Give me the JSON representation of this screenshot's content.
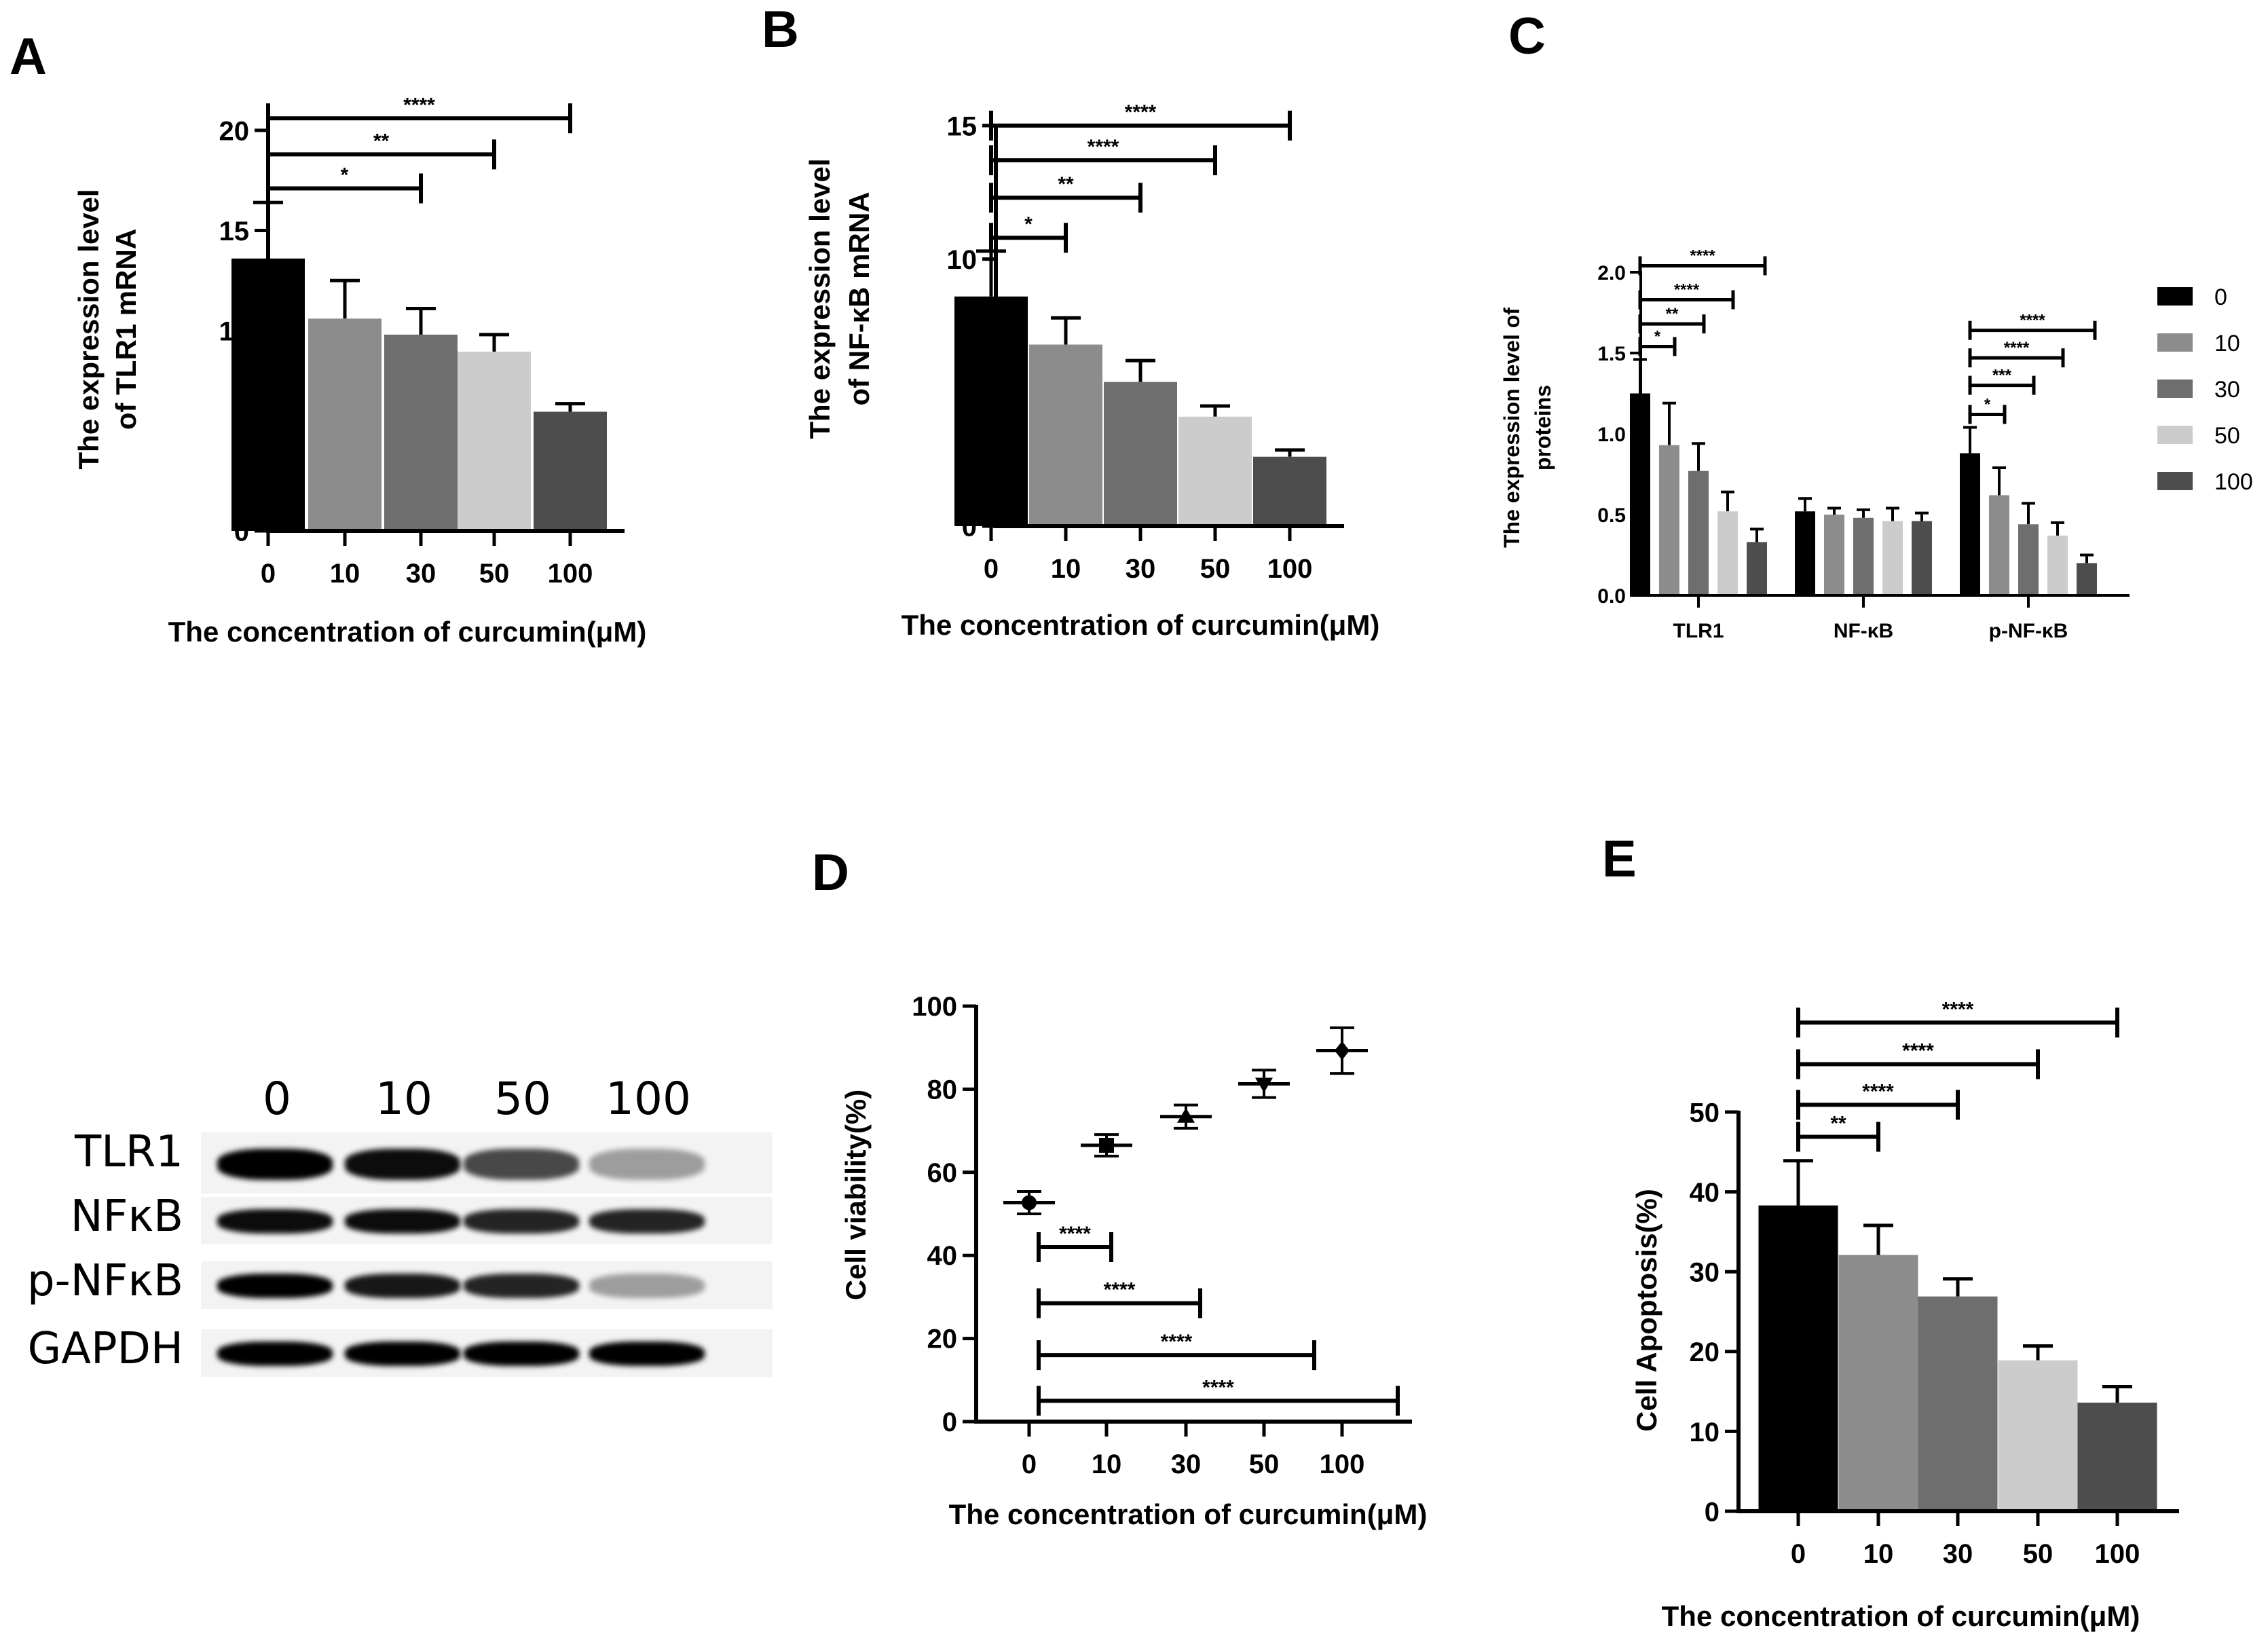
{
  "figure": {
    "panels": [
      "A",
      "B",
      "C",
      "D",
      "E"
    ]
  },
  "colors": {
    "c0": "#000000",
    "c10": "#8c8c8c",
    "c30": "#6e6e6e",
    "c50": "#cccccc",
    "c100": "#4d4d4d",
    "axis": "#000000"
  },
  "western_blot": {
    "lanes": [
      "0",
      "10",
      "50",
      "100"
    ],
    "rows": [
      {
        "label": "TLR1",
        "intensity": [
          1.0,
          0.95,
          0.7,
          0.35
        ]
      },
      {
        "label": "NFκB",
        "intensity": [
          0.95,
          0.95,
          0.85,
          0.85
        ]
      },
      {
        "label": "p-NFκB",
        "intensity": [
          1.0,
          0.9,
          0.85,
          0.35
        ]
      },
      {
        "label": "GAPDH",
        "intensity": [
          1.0,
          1.0,
          1.0,
          1.0
        ]
      }
    ]
  },
  "chart_data": [
    {
      "panel": "A",
      "type": "bar",
      "title": "",
      "xlabel": "The concentration of curcumin(μM)",
      "ylabel": "The expression level of TLR1 mRNA",
      "ylabel_lines": [
        "The expression level",
        "of TLR1 mRNA"
      ],
      "categories": [
        "0",
        "10",
        "30",
        "50",
        "100"
      ],
      "values": [
        13.6,
        10.6,
        9.8,
        8.95,
        5.95
      ],
      "error_upper": [
        16.4,
        12.5,
        11.1,
        9.8,
        6.35
      ],
      "ylim": [
        0,
        20
      ],
      "yticks": [
        0,
        5,
        10,
        15,
        20
      ],
      "significance": [
        {
          "from": "0",
          "to": "30",
          "label": "*",
          "y": 17.1
        },
        {
          "from": "0",
          "to": "50",
          "label": "**",
          "y": 18.8
        },
        {
          "from": "0",
          "to": "100",
          "label": "****",
          "y": 20.6
        }
      ],
      "grid": false
    },
    {
      "panel": "B",
      "type": "bar",
      "title": "",
      "xlabel": "The concentration of curcumin(μM)",
      "ylabel": "The expression level of NF-κB mRNA",
      "ylabel_lines": [
        "The expression level",
        "of NF-κB mRNA"
      ],
      "categories": [
        "0",
        "10",
        "30",
        "50",
        "100"
      ],
      "values": [
        8.6,
        6.8,
        5.4,
        4.1,
        2.6
      ],
      "error_upper": [
        10.3,
        7.8,
        6.2,
        4.5,
        2.85
      ],
      "ylim": [
        0,
        15
      ],
      "yticks": [
        0,
        5,
        10,
        15
      ],
      "significance": [
        {
          "from": "0",
          "to": "10",
          "label": "*",
          "y": 10.8
        },
        {
          "from": "0",
          "to": "30",
          "label": "**",
          "y": 12.3
        },
        {
          "from": "0",
          "to": "50",
          "label": "****",
          "y": 13.7
        },
        {
          "from": "0",
          "to": "100",
          "label": "****",
          "y": 15.0
        }
      ],
      "grid": false
    },
    {
      "panel": "C",
      "type": "bar",
      "title": "",
      "xlabel": "",
      "ylabel": "The expression level of proteins",
      "ylabel_lines": [
        "The expression level of",
        "proteins"
      ],
      "categories": [
        "TLR1",
        "NF-κB",
        "p-NF-κB"
      ],
      "series": [
        {
          "name": "0",
          "values": [
            1.25,
            0.52,
            0.88
          ],
          "error_upper": [
            1.46,
            0.6,
            1.04
          ]
        },
        {
          "name": "10",
          "values": [
            0.93,
            0.5,
            0.62
          ],
          "error_upper": [
            1.19,
            0.54,
            0.79
          ]
        },
        {
          "name": "30",
          "values": [
            0.77,
            0.48,
            0.44
          ],
          "error_upper": [
            0.94,
            0.53,
            0.57
          ]
        },
        {
          "name": "50",
          "values": [
            0.52,
            0.46,
            0.37
          ],
          "error_upper": [
            0.64,
            0.54,
            0.45
          ]
        },
        {
          "name": "100",
          "values": [
            0.33,
            0.46,
            0.2
          ],
          "error_upper": [
            0.41,
            0.51,
            0.25
          ]
        }
      ],
      "ylim": [
        0,
        2.0
      ],
      "yticks": [
        "0.0",
        "0.5",
        "1.0",
        "1.5",
        "2.0"
      ],
      "legend": {
        "position": "right",
        "entries": [
          "0",
          "10",
          "30",
          "50",
          "100"
        ]
      },
      "significance": [
        {
          "group": "TLR1",
          "from": "0",
          "to": "10",
          "label": "*",
          "y": 1.54
        },
        {
          "group": "TLR1",
          "from": "0",
          "to": "30",
          "label": "**",
          "y": 1.68
        },
        {
          "group": "TLR1",
          "from": "0",
          "to": "50",
          "label": "****",
          "y": 1.83
        },
        {
          "group": "TLR1",
          "from": "0",
          "to": "100",
          "label": "****",
          "y": 2.04
        },
        {
          "group": "p-NF-κB",
          "from": "0",
          "to": "10",
          "label": "*",
          "y": 1.12
        },
        {
          "group": "p-NF-κB",
          "from": "0",
          "to": "30",
          "label": "***",
          "y": 1.3
        },
        {
          "group": "p-NF-κB",
          "from": "0",
          "to": "50",
          "label": "****",
          "y": 1.47
        },
        {
          "group": "p-NF-κB",
          "from": "0",
          "to": "100",
          "label": "****",
          "y": 1.64
        }
      ],
      "grid": false
    },
    {
      "panel": "D",
      "type": "scatter",
      "title": "",
      "xlabel": "The concentration of curcumin(μM)",
      "ylabel": "Cell viability(%)",
      "categories": [
        "0",
        "10",
        "30",
        "50",
        "100"
      ],
      "values": [
        52.7,
        66.5,
        73.4,
        81.3,
        89.3
      ],
      "error": [
        2.7,
        2.6,
        2.8,
        3.3,
        5.5
      ],
      "markers": [
        "circle",
        "square",
        "triangle-up",
        "triangle-down",
        "diamond"
      ],
      "ylim": [
        0,
        100
      ],
      "yticks": [
        0,
        20,
        40,
        60,
        80,
        100
      ],
      "significance": [
        {
          "from": "0",
          "to": "10",
          "label": "****",
          "y": 42
        },
        {
          "from": "0",
          "to": "30",
          "label": "****",
          "y": 28.5
        },
        {
          "from": "0",
          "to": "50",
          "label": "****",
          "y": 16
        },
        {
          "from": "0",
          "to": "100",
          "label": "****",
          "y": 5
        }
      ],
      "grid": false
    },
    {
      "panel": "E",
      "type": "bar",
      "title": "",
      "xlabel": "The concentration of curcumin(μM)",
      "ylabel": "Cell Apoptosis(%)",
      "categories": [
        "0",
        "10",
        "30",
        "50",
        "100"
      ],
      "values": [
        38.3,
        32.1,
        26.9,
        18.9,
        13.6
      ],
      "error_upper": [
        43.9,
        35.8,
        29.1,
        20.7,
        15.6
      ],
      "ylim": [
        0,
        50
      ],
      "yticks": [
        0,
        10,
        20,
        30,
        40,
        50
      ],
      "significance": [
        {
          "from": "0",
          "to": "10",
          "label": "**",
          "y": 46.9
        },
        {
          "from": "0",
          "to": "30",
          "label": "****",
          "y": 50.9
        },
        {
          "from": "0",
          "to": "50",
          "label": "****",
          "y": 56.0
        },
        {
          "from": "0",
          "to": "100",
          "label": "****",
          "y": 61.2
        }
      ],
      "grid": false
    }
  ]
}
